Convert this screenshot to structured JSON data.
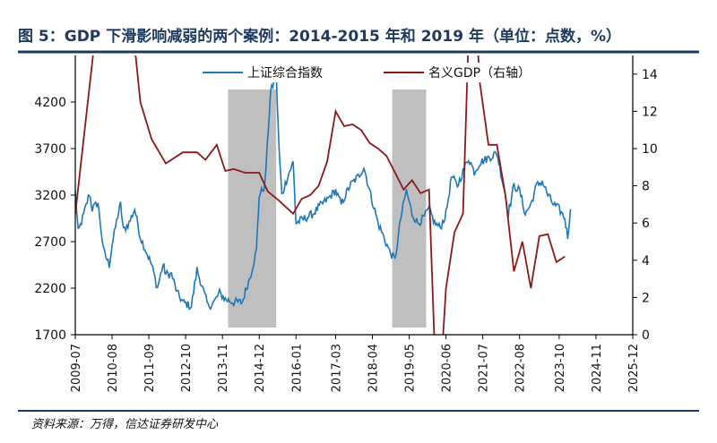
{
  "title": "图 5：GDP 下滑影响减弱的两个案例：2014-2015 年和 2019 年（单位：点数，%）",
  "source": "资料来源：万得，信达证券研发中心",
  "colors": {
    "title": "#1f3a5f",
    "index_line": "#1f77b4",
    "gdp_line": "#8b1a1a",
    "shade": "#bfbfbf",
    "rule": "#1f3a5f"
  },
  "chart_data": {
    "type": "line",
    "x_ticks": [
      "2009-07",
      "2010-08",
      "2011-09",
      "2012-10",
      "2013-11",
      "2014-12",
      "2016-01",
      "2017-03",
      "2018-04",
      "2019-05",
      "2020-06",
      "2021-07",
      "2022-08",
      "2023-10",
      "2024-11",
      "2025-12"
    ],
    "y_left": {
      "ticks": [
        "1700",
        "2200",
        "2700",
        "3200",
        "3700",
        "4200"
      ],
      "range": [
        1700,
        4700
      ]
    },
    "y_right": {
      "ticks": [
        "0",
        "2",
        "4",
        "6",
        "8",
        "10",
        "12",
        "14"
      ],
      "range": [
        0,
        15
      ]
    },
    "shaded_periods": [
      {
        "start": "2014-01",
        "end": "2015-06"
      },
      {
        "start": "2018-11",
        "end": "2019-11"
      }
    ],
    "series": [
      {
        "name": "上证综合指数",
        "axis": "left",
        "points": [
          [
            "2009-07",
            3250
          ],
          [
            "2009-08",
            2800
          ],
          [
            "2009-10",
            2990
          ],
          [
            "2009-12",
            3220
          ],
          [
            "2010-01",
            3050
          ],
          [
            "2010-03",
            3120
          ],
          [
            "2010-05",
            2600
          ],
          [
            "2010-07",
            2450
          ],
          [
            "2010-08",
            2660
          ],
          [
            "2010-10",
            2980
          ],
          [
            "2010-11",
            3100
          ],
          [
            "2010-12",
            2820
          ],
          [
            "2011-02",
            2900
          ],
          [
            "2011-04",
            3050
          ],
          [
            "2011-06",
            2750
          ],
          [
            "2011-08",
            2600
          ],
          [
            "2011-10",
            2450
          ],
          [
            "2011-12",
            2200
          ],
          [
            "2012-02",
            2450
          ],
          [
            "2012-03",
            2350
          ],
          [
            "2012-05",
            2350
          ],
          [
            "2012-07",
            2150
          ],
          [
            "2012-09",
            2050
          ],
          [
            "2012-12",
            2000
          ],
          [
            "2013-02",
            2400
          ],
          [
            "2013-04",
            2200
          ],
          [
            "2013-06",
            2000
          ],
          [
            "2013-08",
            2050
          ],
          [
            "2013-10",
            2150
          ],
          [
            "2013-12",
            2080
          ],
          [
            "2014-03",
            2050
          ],
          [
            "2014-06",
            2050
          ],
          [
            "2014-09",
            2350
          ],
          [
            "2014-11",
            2600
          ],
          [
            "2014-12",
            3200
          ],
          [
            "2015-02",
            3300
          ],
          [
            "2015-04",
            4300
          ],
          [
            "2015-06",
            4500
          ],
          [
            "2015-07",
            3700
          ],
          [
            "2015-08",
            3200
          ],
          [
            "2015-10",
            3400
          ],
          [
            "2015-12",
            3550
          ],
          [
            "2016-01",
            2900
          ],
          [
            "2016-04",
            2950
          ],
          [
            "2016-07",
            3000
          ],
          [
            "2016-10",
            3100
          ],
          [
            "2016-12",
            3150
          ],
          [
            "2017-03",
            3250
          ],
          [
            "2017-05",
            3100
          ],
          [
            "2017-08",
            3300
          ],
          [
            "2017-11",
            3400
          ],
          [
            "2018-01",
            3500
          ],
          [
            "2018-03",
            3250
          ],
          [
            "2018-06",
            2900
          ],
          [
            "2018-08",
            2750
          ],
          [
            "2018-10",
            2600
          ],
          [
            "2018-12",
            2500
          ],
          [
            "2019-02",
            2950
          ],
          [
            "2019-04",
            3250
          ],
          [
            "2019-06",
            3000
          ],
          [
            "2019-08",
            2900
          ],
          [
            "2019-10",
            2950
          ],
          [
            "2019-12",
            3050
          ],
          [
            "2020-02",
            2900
          ],
          [
            "2020-04",
            2850
          ],
          [
            "2020-06",
            3000
          ],
          [
            "2020-08",
            3400
          ],
          [
            "2020-10",
            3300
          ],
          [
            "2020-12",
            3450
          ],
          [
            "2021-02",
            3600
          ],
          [
            "2021-04",
            3450
          ],
          [
            "2021-06",
            3550
          ],
          [
            "2021-09",
            3600
          ],
          [
            "2021-12",
            3650
          ],
          [
            "2022-01",
            3500
          ],
          [
            "2022-03",
            3200
          ],
          [
            "2022-04",
            3000
          ],
          [
            "2022-06",
            3300
          ],
          [
            "2022-08",
            3250
          ],
          [
            "2022-10",
            3000
          ],
          [
            "2022-12",
            3100
          ],
          [
            "2023-02",
            3300
          ],
          [
            "2023-04",
            3350
          ],
          [
            "2023-06",
            3200
          ],
          [
            "2023-08",
            3100
          ],
          [
            "2023-10",
            3050
          ],
          [
            "2023-12",
            2950
          ],
          [
            "2024-01",
            2750
          ],
          [
            "2024-02",
            3050
          ]
        ]
      },
      {
        "name": "名义GDP（右轴）",
        "axis": "right",
        "points": [
          [
            "2009-07",
            6.5
          ],
          [
            "2010-02",
            16
          ],
          [
            "2011-03",
            17
          ],
          [
            "2011-06",
            12.5
          ],
          [
            "2011-10",
            10.5
          ],
          [
            "2012-03",
            9.2
          ],
          [
            "2012-09",
            9.8
          ],
          [
            "2013-02",
            9.8
          ],
          [
            "2013-05",
            9.4
          ],
          [
            "2013-09",
            10.2
          ],
          [
            "2013-12",
            8.8
          ],
          [
            "2014-03",
            8.9
          ],
          [
            "2014-07",
            8.7
          ],
          [
            "2014-12",
            8.7
          ],
          [
            "2015-03",
            7.7
          ],
          [
            "2015-07",
            7.2
          ],
          [
            "2015-12",
            6.5
          ],
          [
            "2016-03",
            7.3
          ],
          [
            "2016-06",
            7.5
          ],
          [
            "2016-09",
            8.0
          ],
          [
            "2016-12",
            9.3
          ],
          [
            "2017-03",
            12.0
          ],
          [
            "2017-06",
            11.2
          ],
          [
            "2017-09",
            11.3
          ],
          [
            "2017-12",
            11.0
          ],
          [
            "2018-03",
            10.3
          ],
          [
            "2018-06",
            10.0
          ],
          [
            "2018-09",
            9.6
          ],
          [
            "2018-12",
            8.7
          ],
          [
            "2019-03",
            7.8
          ],
          [
            "2019-06",
            8.3
          ],
          [
            "2019-09",
            7.6
          ],
          [
            "2019-12",
            7.8
          ],
          [
            "2020-03",
            -5.0
          ],
          [
            "2020-06",
            2.5
          ],
          [
            "2020-09",
            5.5
          ],
          [
            "2020-12",
            6.5
          ],
          [
            "2021-03",
            21.0
          ],
          [
            "2021-06",
            13.5
          ],
          [
            "2021-09",
            10.2
          ],
          [
            "2021-12",
            10.2
          ],
          [
            "2022-03",
            7.5
          ],
          [
            "2022-06",
            3.4
          ],
          [
            "2022-09",
            5.0
          ],
          [
            "2022-12",
            2.5
          ],
          [
            "2023-03",
            5.3
          ],
          [
            "2023-06",
            5.4
          ],
          [
            "2023-09",
            3.9
          ],
          [
            "2023-12",
            4.2
          ]
        ]
      }
    ]
  }
}
